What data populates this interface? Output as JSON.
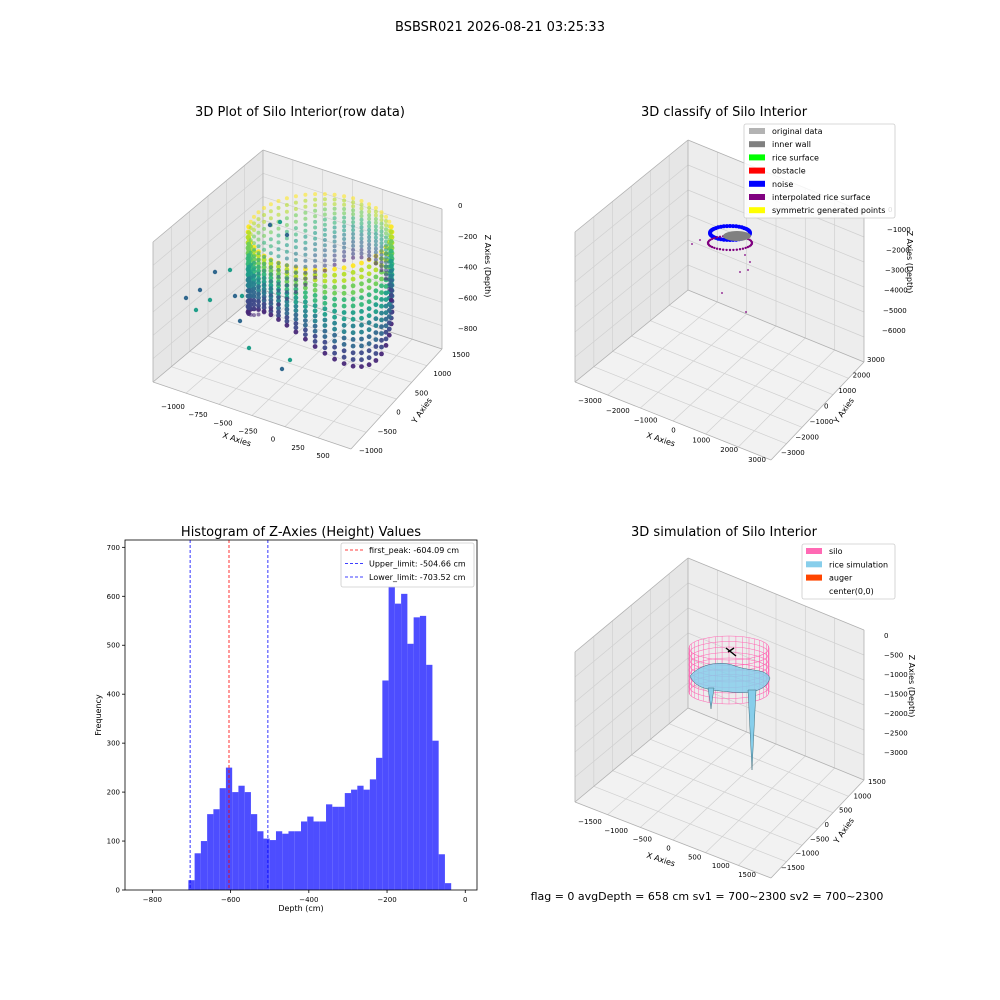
{
  "figure": {
    "suptitle": "BSBSR021 2026-08-21 03:25:33",
    "status_text": "flag = 0     avgDepth = 658 cm  sv1 = 700~2300  sv2 = 700~2300"
  },
  "chart_data": [
    {
      "type": "scatter",
      "projection": "3d",
      "title": "3D Plot of Silo Interior(row data)",
      "xlabel": "X Axies",
      "ylabel": "Y Axies",
      "zlabel": "Z Axies (Depth)",
      "x_ticks": [
        "−1000",
        "−750",
        "−500",
        "−250",
        "0",
        "250",
        "500"
      ],
      "y_ticks": [
        "−1000",
        "−500",
        "0",
        "500",
        "1000",
        "1500"
      ],
      "z_ticks": [
        "−800",
        "−600",
        "−400",
        "−200",
        "0"
      ],
      "colormap": "viridis",
      "zlim": [
        -900,
        0
      ]
    },
    {
      "type": "scatter",
      "projection": "3d",
      "title": "3D classify of Silo Interior",
      "xlabel": "X Axies",
      "ylabel": "Y Axies",
      "zlabel": "Z Axies (Depth)",
      "x_ticks": [
        "−3000",
        "−2000",
        "−1000",
        "0",
        "1000",
        "2000",
        "3000"
      ],
      "y_ticks": [
        "−3000",
        "−2000",
        "−1000",
        "0",
        "1000",
        "2000",
        "3000"
      ],
      "z_ticks": [
        "−6000",
        "−5000",
        "−4000",
        "−3000",
        "−2000",
        "−1000",
        "0"
      ],
      "legend_position": "top-right",
      "legend": [
        {
          "label": "original data",
          "color": "#b3b3b3"
        },
        {
          "label": "inner wall",
          "color": "#808080"
        },
        {
          "label": "rice surface",
          "color": "#00ff00"
        },
        {
          "label": "obstacle",
          "color": "#ff0000"
        },
        {
          "label": "noise",
          "color": "#0000ff"
        },
        {
          "label": "interpolated rice surface",
          "color": "#800080"
        },
        {
          "label": "symmetric generated points",
          "color": "#ffff00"
        }
      ]
    },
    {
      "type": "bar",
      "title": "Histogram of Z-Axies (Height) Values",
      "xlabel": "Depth (cm)",
      "ylabel": "Frequency",
      "xlim": [
        -870,
        30
      ],
      "ylim": [
        0,
        715
      ],
      "x_ticks": [
        -800,
        -600,
        -400,
        -200,
        0
      ],
      "x_tick_labels": [
        "−800",
        "−600",
        "−400",
        "−200",
        "0"
      ],
      "y_ticks": [
        0,
        100,
        200,
        300,
        400,
        500,
        600,
        700
      ],
      "bar_color": "#4d4dff",
      "bin_width": 16,
      "bin_start": -708,
      "values": [
        20,
        75,
        100,
        155,
        165,
        208,
        250,
        200,
        213,
        200,
        155,
        120,
        105,
        102,
        120,
        115,
        120,
        120,
        140,
        150,
        140,
        140,
        175,
        170,
        170,
        198,
        205,
        213,
        205,
        226,
        270,
        428,
        620,
        585,
        605,
        503,
        557,
        560,
        460,
        305,
        73,
        14
      ],
      "vlines": [
        {
          "label": "first_peak: -604.09 cm",
          "x": -604.09,
          "color": "#ff0000"
        },
        {
          "label": "Upper_limit: -504.66 cm",
          "x": -504.66,
          "color": "#0000ff"
        },
        {
          "label": "Lower_limit: -703.52 cm",
          "x": -703.52,
          "color": "#0000ff"
        }
      ],
      "legend_position": "top-right"
    },
    {
      "type": "surface",
      "projection": "3d",
      "title": "3D simulation of Silo Interior",
      "xlabel": "X Axies",
      "ylabel": "Y Axies",
      "zlabel": "Z Axies (Depth)",
      "x_ticks": [
        "−1500",
        "−1000",
        "−500",
        "0",
        "500",
        "1000",
        "1500"
      ],
      "y_ticks": [
        "−1500",
        "−1000",
        "−500",
        "0",
        "500",
        "1000",
        "1500"
      ],
      "z_ticks": [
        "−3000",
        "−2500",
        "−2000",
        "−1500",
        "−1000",
        "−500",
        "0"
      ],
      "legend_position": "top-right",
      "legend": [
        {
          "label": "silo",
          "color": "#ff69b4"
        },
        {
          "label": "rice simulation",
          "color": "#87ceeb"
        },
        {
          "label": "auger",
          "color": "#ff4500"
        },
        {
          "label": "center(0,0)",
          "color": "#ffffff"
        }
      ]
    }
  ]
}
